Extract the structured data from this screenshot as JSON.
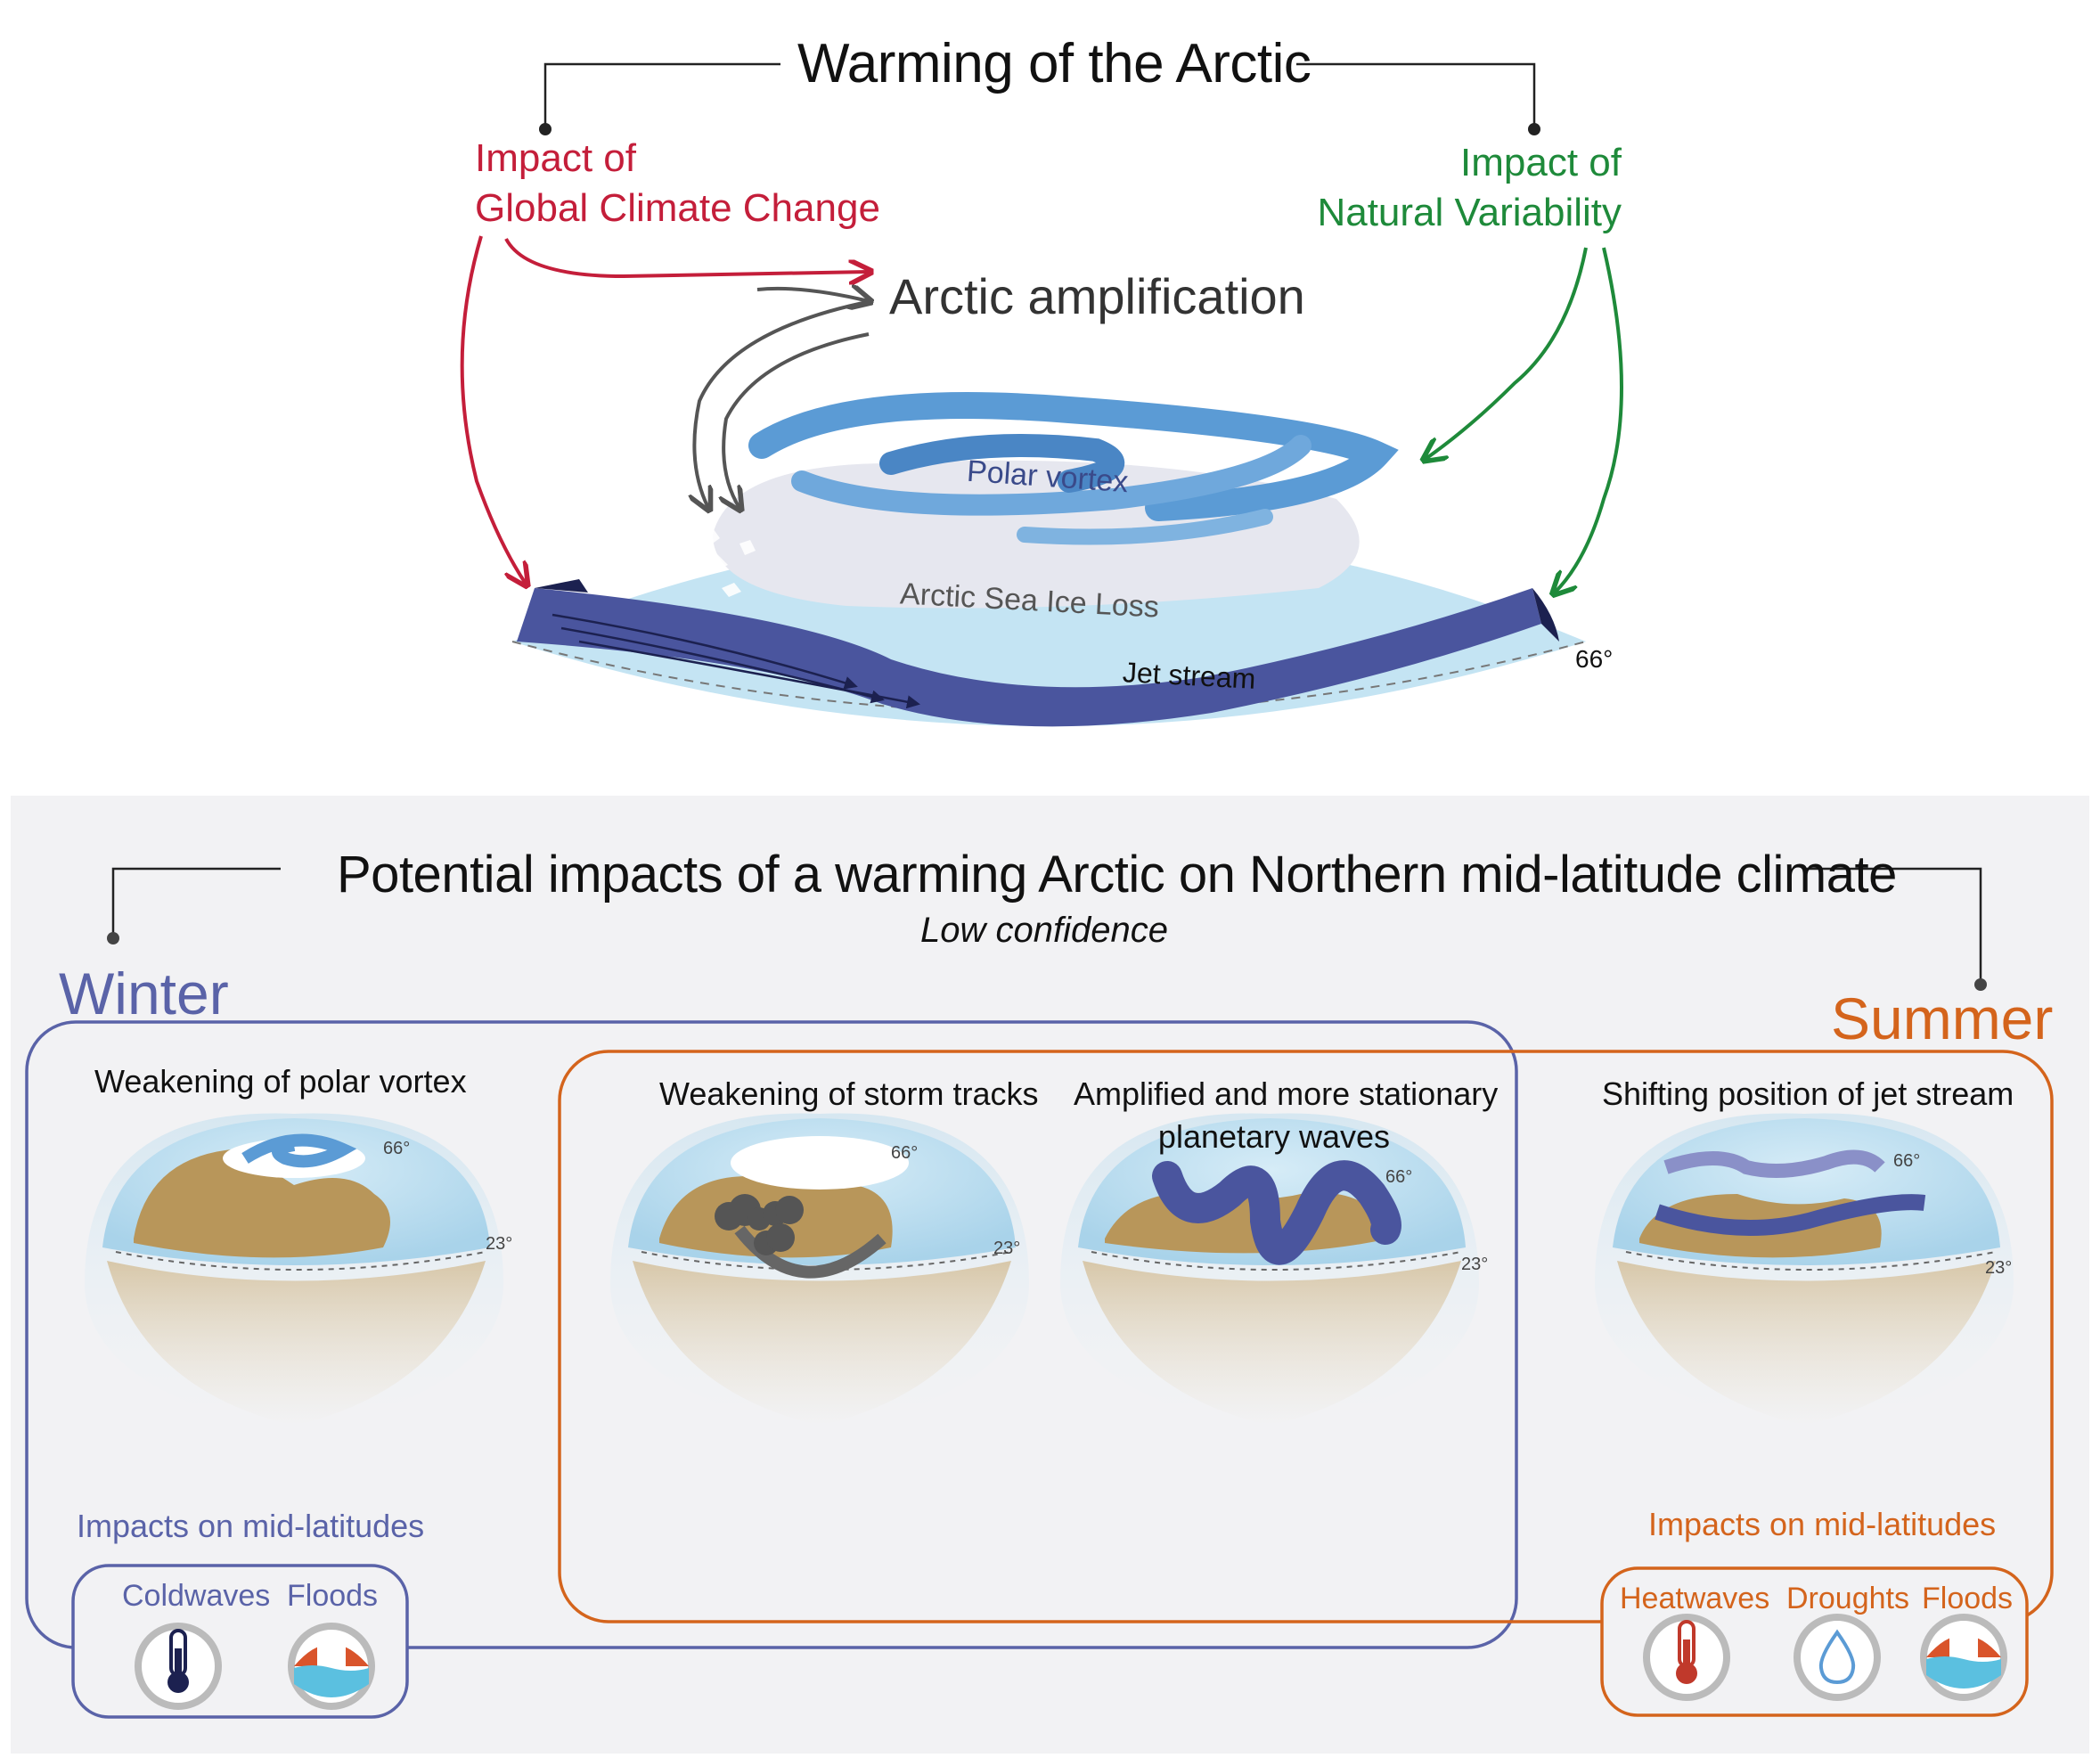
{
  "top": {
    "title": "Warming of the Arctic",
    "global_label_line1": "Impact of",
    "global_label_line2": "Global Climate Change",
    "natural_label_line1": "Impact of",
    "natural_label_line2": "Natural Variability",
    "amplification": "Arctic amplification",
    "polar_vortex": "Polar vortex",
    "sea_ice": "Arctic Sea Ice Loss",
    "jet_stream": "Jet stream",
    "lat_66": "66°"
  },
  "bottom": {
    "title": "Potential impacts of a warming Arctic on Northern mid-latitude climate",
    "confidence": "Low confidence",
    "winter": "Winter",
    "summer": "Summer",
    "panels": {
      "polar_vortex": "Weakening of polar vortex",
      "storm_tracks": "Weakening of storm tracks",
      "waves_line1": "Amplified and more stationary",
      "waves_line2": "planetary waves",
      "jet_shift": "Shifting position of jet stream"
    },
    "lat_66": "66°",
    "lat_23": "23°",
    "winter_impacts": {
      "heading": "Impacts on mid-latitudes",
      "coldwaves": "Coldwaves",
      "floods": "Floods"
    },
    "summer_impacts": {
      "heading": "Impacts on mid-latitudes",
      "heatwaves": "Heatwaves",
      "droughts": "Droughts",
      "floods": "Floods"
    }
  },
  "colors": {
    "winter": "#5a63a8",
    "summer": "#d4641c",
    "global_change": "#c41e3a",
    "natural_variability": "#1e8a3a",
    "jet_stream": "#4a559e",
    "vortex": "#5b9bd5",
    "land": "#b8965a",
    "ocean": "#bfe0f0"
  },
  "icons": [
    "thermometer-cold-icon",
    "flood-icon",
    "thermometer-hot-icon",
    "water-drop-icon",
    "flood-icon"
  ]
}
